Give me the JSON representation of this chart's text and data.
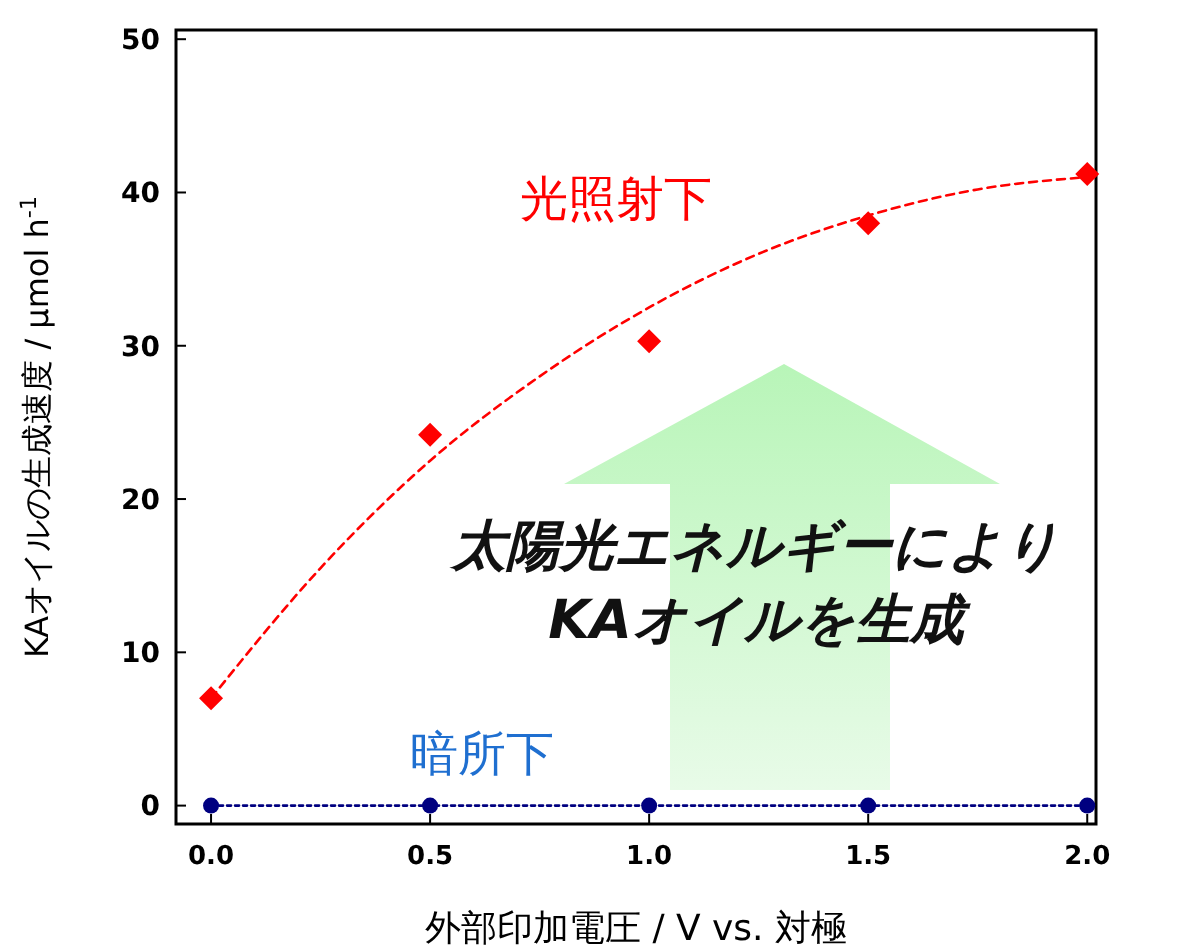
{
  "chart_data": {
    "type": "scatter",
    "xlabel": "外部印加電圧 / V vs. 対極",
    "ylabel": "KAオイルの生成速度 / μmol h$^{-1}$",
    "x": [
      0,
      0.5,
      1.0,
      1.5,
      2.0
    ],
    "xlim": [
      -0.08,
      2.02
    ],
    "ylim": [
      -1.2,
      50.6
    ],
    "xticks": [
      {
        "value": 0,
        "label": "0.0"
      },
      {
        "value": 0.5,
        "label": "0.5"
      },
      {
        "value": 1,
        "label": "1.0"
      },
      {
        "value": 1.5,
        "label": "1.5"
      },
      {
        "value": 2,
        "label": "2.0"
      }
    ],
    "yticks": [
      0,
      10,
      20,
      30,
      40,
      50
    ],
    "grid": false,
    "series": [
      {
        "name": "光照射下",
        "color": "#ff0000",
        "marker": "diamond",
        "values": [
          7,
          24.2,
          30.3,
          38,
          41.2
        ]
      },
      {
        "color": "#ff0000",
        "type": "line",
        "marker": "none",
        "line_style": "dashed",
        "x": [
          0,
          0.25,
          0.5,
          0.75,
          1.0,
          1.25,
          1.5,
          1.75,
          2.0
        ],
        "values": [
          7,
          15.5,
          22.5,
          28,
          32.5,
          36,
          38.5,
          40.2,
          41
        ]
      },
      {
        "name": "暗所下",
        "color": "#000080",
        "type": "line",
        "marker": "circle",
        "line_style": "dotted",
        "values": [
          0,
          0,
          0,
          0,
          0
        ]
      }
    ],
    "annotations": [
      "太陽光エネルギーにより\nKAオイルを生成"
    ]
  }
}
